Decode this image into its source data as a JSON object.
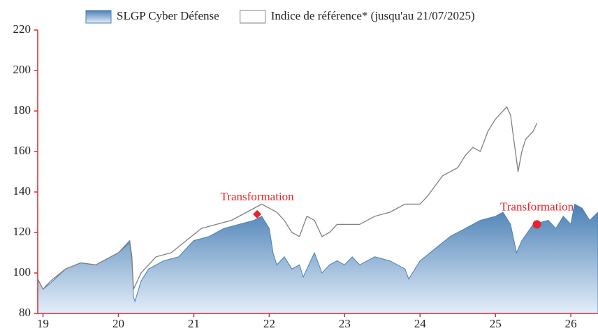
{
  "chart_data": {
    "type": "area-line",
    "xlim": [
      18.93,
      26.36
    ],
    "xticks": [
      19,
      20,
      21,
      22,
      23,
      24,
      25,
      26
    ],
    "ylim": [
      80,
      220
    ],
    "yticks": [
      80,
      100,
      120,
      140,
      160,
      180,
      200,
      220
    ],
    "axis_color": "#e2262b",
    "series": [
      {
        "name": "SLGP Cyber Défense",
        "kind": "area",
        "color": "#4a7fb5",
        "x": [
          18.93,
          19.0,
          19.1,
          19.3,
          19.5,
          19.7,
          19.9,
          20.0,
          20.15,
          20.18,
          20.2,
          20.22,
          20.3,
          20.4,
          20.6,
          20.8,
          21.0,
          21.2,
          21.4,
          21.6,
          21.8,
          21.9,
          22.0,
          22.05,
          22.1,
          22.2,
          22.3,
          22.4,
          22.45,
          22.55,
          22.6,
          22.7,
          22.8,
          22.9,
          23.0,
          23.1,
          23.2,
          23.4,
          23.6,
          23.8,
          23.85,
          24.0,
          24.2,
          24.4,
          24.6,
          24.8,
          25.0,
          25.1,
          25.2,
          25.28,
          25.35,
          25.5,
          25.7,
          25.8,
          25.9,
          26.0,
          26.05,
          26.15,
          26.25,
          26.36
        ],
        "values": [
          97,
          92,
          95,
          102,
          105,
          104,
          108,
          110,
          116,
          108,
          88,
          86,
          96,
          102,
          106,
          108,
          116,
          118,
          122,
          124,
          126,
          128,
          122,
          110,
          104,
          108,
          102,
          104,
          98,
          106,
          110,
          100,
          104,
          106,
          104,
          108,
          104,
          108,
          106,
          102,
          97,
          106,
          112,
          118,
          122,
          126,
          128,
          130,
          124,
          110,
          116,
          124,
          126,
          122,
          128,
          124,
          134,
          132,
          126,
          130
        ]
      },
      {
        "name": "Indice de référence* (jusqu'au 21/07/2025)",
        "kind": "line",
        "color": "#808080",
        "x": [
          18.93,
          19.0,
          19.1,
          19.3,
          19.5,
          19.7,
          19.9,
          20.0,
          20.15,
          20.18,
          20.2,
          20.25,
          20.3,
          20.5,
          20.7,
          20.9,
          21.1,
          21.3,
          21.5,
          21.7,
          21.9,
          22.0,
          22.1,
          22.2,
          22.3,
          22.4,
          22.5,
          22.6,
          22.7,
          22.8,
          22.9,
          23.0,
          23.2,
          23.4,
          23.6,
          23.8,
          24.0,
          24.1,
          24.3,
          24.5,
          24.6,
          24.7,
          24.8,
          24.9,
          25.0,
          25.15,
          25.2,
          25.25,
          25.3,
          25.35,
          25.4,
          25.5,
          25.55
        ],
        "values": [
          97,
          92,
          96,
          102,
          105,
          104,
          108,
          110,
          115,
          106,
          92,
          96,
          100,
          108,
          110,
          116,
          122,
          124,
          126,
          130,
          134,
          132,
          130,
          126,
          120,
          118,
          128,
          126,
          118,
          120,
          124,
          124,
          124,
          128,
          130,
          134,
          134,
          138,
          148,
          152,
          158,
          162,
          160,
          170,
          176,
          182,
          178,
          164,
          150,
          160,
          166,
          170,
          174
        ]
      }
    ],
    "annotations": [
      {
        "text": "Transformation",
        "x": 21.84,
        "y": 129,
        "marker": "diamond"
      },
      {
        "text": "Transformation",
        "x": 25.55,
        "y": 124,
        "marker": "circle"
      }
    ]
  }
}
